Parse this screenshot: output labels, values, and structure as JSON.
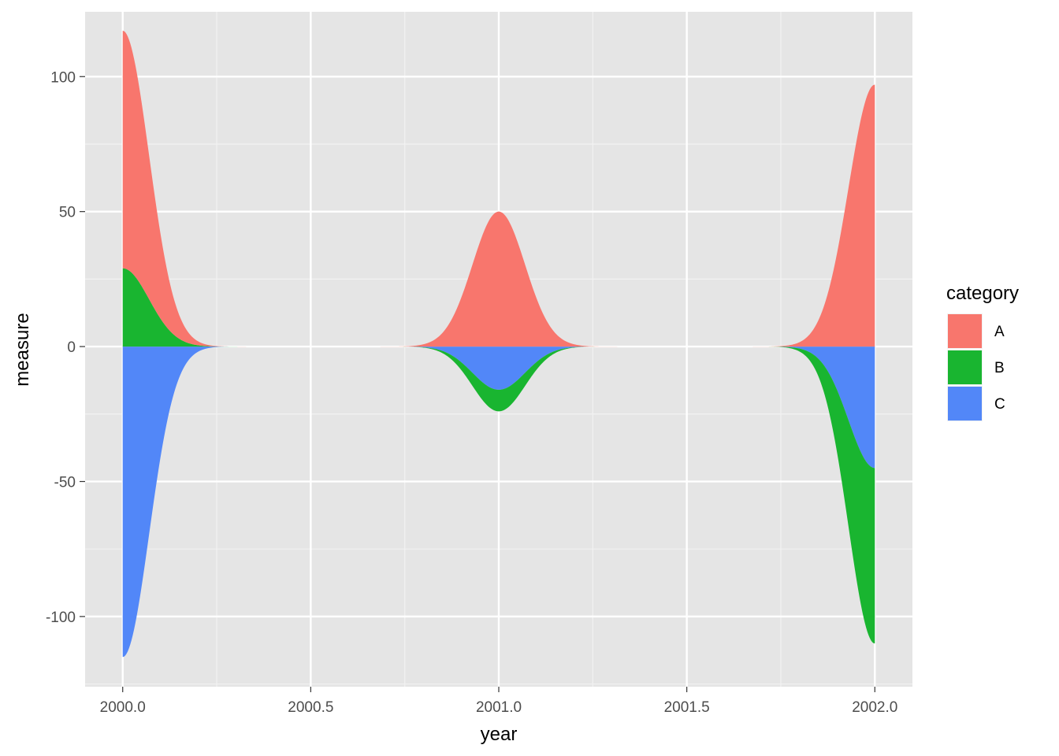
{
  "chart_data": {
    "type": "area",
    "stacked": true,
    "xlabel": "year",
    "ylabel": "measure",
    "xlim": [
      1999.9,
      2002.1
    ],
    "ylim": [
      -126,
      124
    ],
    "x_ticks": [
      2000.0,
      2000.5,
      2001.0,
      2001.5,
      2002.0
    ],
    "x_tick_labels": [
      "2000.0",
      "2000.5",
      "2001.0",
      "2001.5",
      "2002.0"
    ],
    "y_ticks": [
      -100,
      -50,
      0,
      50,
      100
    ],
    "y_tick_labels": [
      "-100",
      "-50",
      "0",
      "50",
      "100"
    ],
    "grid": true,
    "background": "#e5e5e5",
    "legend": {
      "title": "category",
      "position": "right",
      "entries": [
        "A",
        "B",
        "C"
      ]
    },
    "series": [
      {
        "name": "A",
        "color": "#f8766d",
        "x": [
          2000,
          2001,
          2002
        ],
        "values": [
          88,
          50,
          97
        ]
      },
      {
        "name": "B",
        "color": "#19b530",
        "x": [
          2000,
          2001,
          2002
        ],
        "values": [
          29,
          -8,
          -65
        ]
      },
      {
        "name": "C",
        "color": "#5287f8",
        "x": [
          2000,
          2001,
          2002
        ],
        "values": [
          -115,
          -16,
          -45
        ]
      }
    ]
  }
}
